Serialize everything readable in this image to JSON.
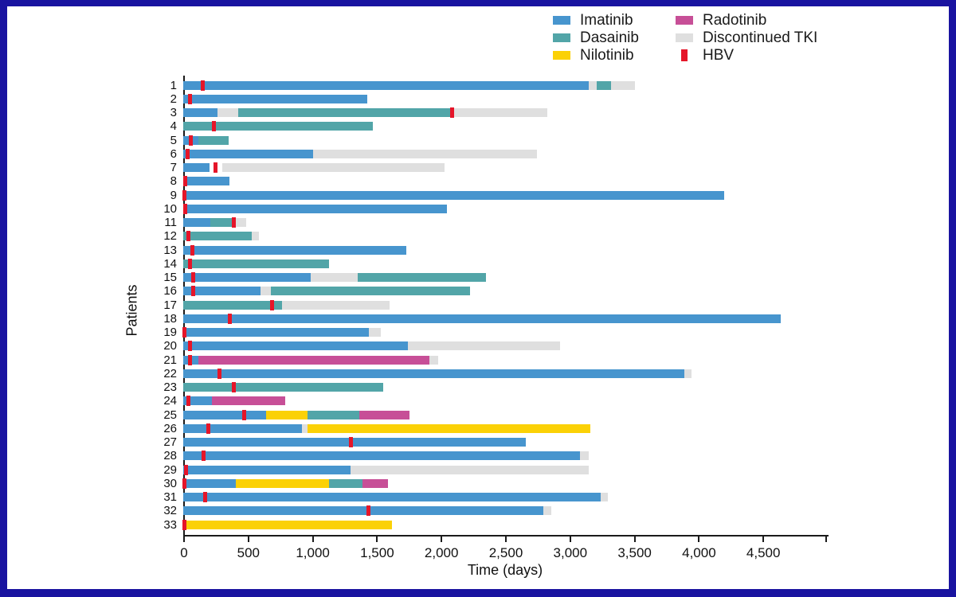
{
  "frame": {
    "border_color": "#1913A0",
    "canvas_color": "#ffffff"
  },
  "legend": {
    "items": [
      {
        "label": "Imatinib",
        "color": "#4795CE",
        "swatch": "bar"
      },
      {
        "label": "Dasainib",
        "color": "#52A5A8",
        "swatch": "bar"
      },
      {
        "label": "Nilotinib",
        "color": "#FBD106",
        "swatch": "bar"
      },
      {
        "label": "Radotinib",
        "color": "#C74F97",
        "swatch": "bar"
      },
      {
        "label": "Discontinued TKI",
        "color": "#DFDFDF",
        "swatch": "bar"
      },
      {
        "label": "HBV",
        "color": "#E51529",
        "swatch": "tick"
      }
    ]
  },
  "chart_data": {
    "type": "bar",
    "orientation": "horizontal",
    "title": "",
    "xlabel": "Time (days)",
    "ylabel": "Patients",
    "xlim": [
      0,
      5000
    ],
    "xticks": [
      0,
      500,
      1000,
      1500,
      2000,
      2500,
      3000,
      3500,
      4000,
      4500
    ],
    "xtick_labels": [
      "0",
      "500",
      "1,000",
      "1,500",
      "2,000",
      "2,500",
      "3,000",
      "3,500",
      "4,000",
      "4,500"
    ],
    "end_tick": 5000,
    "grid": false,
    "legend_position": "top",
    "colors": {
      "Imatinib": "#4795CE",
      "Dasainib": "#52A5A8",
      "Nilotinib": "#FBD106",
      "Radotinib": "#C74F97",
      "Discontinued": "#DFDFDF",
      "HBV": "#E51529"
    },
    "patients": [
      {
        "id": "1",
        "hbv": 150,
        "segments": [
          {
            "drug": "Imatinib",
            "start": 0,
            "end": 3150
          },
          {
            "drug": "Discontinued",
            "start": 3150,
            "end": 3210
          },
          {
            "drug": "Dasainib",
            "start": 3210,
            "end": 3320
          },
          {
            "drug": "Discontinued",
            "start": 3320,
            "end": 3510
          }
        ]
      },
      {
        "id": "2",
        "hbv": 55,
        "segments": [
          {
            "drug": "Imatinib",
            "start": 0,
            "end": 1430
          }
        ]
      },
      {
        "id": "3",
        "hbv": 2090,
        "segments": [
          {
            "drug": "Imatinib",
            "start": 0,
            "end": 265
          },
          {
            "drug": "Discontinued",
            "start": 265,
            "end": 430
          },
          {
            "drug": "Dasainib",
            "start": 430,
            "end": 2090
          },
          {
            "drug": "Discontinued",
            "start": 2090,
            "end": 2830
          }
        ]
      },
      {
        "id": "4",
        "hbv": 240,
        "segments": [
          {
            "drug": "Dasainib",
            "start": 0,
            "end": 1475
          }
        ]
      },
      {
        "id": "5",
        "hbv": 60,
        "segments": [
          {
            "drug": "Imatinib",
            "start": 0,
            "end": 115
          },
          {
            "drug": "Dasainib",
            "start": 115,
            "end": 355
          }
        ]
      },
      {
        "id": "6",
        "hbv": 35,
        "segments": [
          {
            "drug": "Imatinib",
            "start": 0,
            "end": 1010
          },
          {
            "drug": "Discontinued",
            "start": 1010,
            "end": 2750
          }
        ]
      },
      {
        "id": "7",
        "hbv": 250,
        "segments": [
          {
            "drug": "Imatinib",
            "start": 0,
            "end": 205
          },
          {
            "drug": "Discontinued",
            "start": 305,
            "end": 2030
          }
        ]
      },
      {
        "id": "8",
        "hbv": 15,
        "segments": [
          {
            "drug": "Imatinib",
            "start": 0,
            "end": 360
          }
        ]
      },
      {
        "id": "9",
        "hbv": 10,
        "segments": [
          {
            "drug": "Imatinib",
            "start": 0,
            "end": 4200
          }
        ]
      },
      {
        "id": "10",
        "hbv": 15,
        "segments": [
          {
            "drug": "Imatinib",
            "start": 0,
            "end": 2050
          }
        ]
      },
      {
        "id": "11",
        "hbv": 390,
        "segments": [
          {
            "drug": "Imatinib",
            "start": 0,
            "end": 210
          },
          {
            "drug": "Dasainib",
            "start": 210,
            "end": 380
          },
          {
            "drug": "Discontinued",
            "start": 400,
            "end": 490
          }
        ]
      },
      {
        "id": "12",
        "hbv": 40,
        "segments": [
          {
            "drug": "Dasainib",
            "start": 0,
            "end": 530
          },
          {
            "drug": "Discontinued",
            "start": 530,
            "end": 585
          }
        ]
      },
      {
        "id": "13",
        "hbv": 70,
        "segments": [
          {
            "drug": "Imatinib",
            "start": 0,
            "end": 1730
          }
        ]
      },
      {
        "id": "14",
        "hbv": 50,
        "segments": [
          {
            "drug": "Dasainib",
            "start": 0,
            "end": 1130
          }
        ]
      },
      {
        "id": "15",
        "hbv": 75,
        "segments": [
          {
            "drug": "Imatinib",
            "start": 0,
            "end": 990
          },
          {
            "drug": "Discontinued",
            "start": 990,
            "end": 1355
          },
          {
            "drug": "Dasainib",
            "start": 1355,
            "end": 2350
          }
        ]
      },
      {
        "id": "16",
        "hbv": 75,
        "segments": [
          {
            "drug": "Imatinib",
            "start": 0,
            "end": 600
          },
          {
            "drug": "Discontinued",
            "start": 600,
            "end": 680
          },
          {
            "drug": "Dasainib",
            "start": 680,
            "end": 2230
          }
        ]
      },
      {
        "id": "17",
        "hbv": 690,
        "segments": [
          {
            "drug": "Dasainib",
            "start": 0,
            "end": 770
          },
          {
            "drug": "Discontinued",
            "start": 770,
            "end": 1600
          }
        ]
      },
      {
        "id": "18",
        "hbv": 365,
        "segments": [
          {
            "drug": "Imatinib",
            "start": 0,
            "end": 4640
          }
        ]
      },
      {
        "id": "19",
        "hbv": 10,
        "segments": [
          {
            "drug": "Imatinib",
            "start": 0,
            "end": 1440
          },
          {
            "drug": "Discontinued",
            "start": 1440,
            "end": 1535
          }
        ]
      },
      {
        "id": "20",
        "hbv": 55,
        "segments": [
          {
            "drug": "Imatinib",
            "start": 0,
            "end": 1745
          },
          {
            "drug": "Discontinued",
            "start": 1745,
            "end": 2930
          }
        ]
      },
      {
        "id": "21",
        "hbv": 50,
        "segments": [
          {
            "drug": "Imatinib",
            "start": 0,
            "end": 120
          },
          {
            "drug": "Radotinib",
            "start": 120,
            "end": 1910
          },
          {
            "drug": "Discontinued",
            "start": 1910,
            "end": 1980
          }
        ]
      },
      {
        "id": "22",
        "hbv": 280,
        "segments": [
          {
            "drug": "Imatinib",
            "start": 0,
            "end": 3890
          },
          {
            "drug": "Discontinued",
            "start": 3890,
            "end": 3950
          }
        ]
      },
      {
        "id": "23",
        "hbv": 390,
        "segments": [
          {
            "drug": "Dasainib",
            "start": 0,
            "end": 1555
          }
        ]
      },
      {
        "id": "24",
        "hbv": 40,
        "segments": [
          {
            "drug": "Imatinib",
            "start": 0,
            "end": 220
          },
          {
            "drug": "Radotinib",
            "start": 220,
            "end": 790
          }
        ]
      },
      {
        "id": "25",
        "hbv": 475,
        "segments": [
          {
            "drug": "Imatinib",
            "start": 0,
            "end": 645
          },
          {
            "drug": "Nilotinib",
            "start": 645,
            "end": 965
          },
          {
            "drug": "Dasainib",
            "start": 965,
            "end": 1370
          },
          {
            "drug": "Radotinib",
            "start": 1370,
            "end": 1760
          }
        ]
      },
      {
        "id": "26",
        "hbv": 195,
        "segments": [
          {
            "drug": "Imatinib",
            "start": 0,
            "end": 925
          },
          {
            "drug": "Discontinued",
            "start": 925,
            "end": 965
          },
          {
            "drug": "Nilotinib",
            "start": 965,
            "end": 3160
          }
        ]
      },
      {
        "id": "27",
        "hbv": 1300,
        "segments": [
          {
            "drug": "Imatinib",
            "start": 0,
            "end": 2660
          }
        ]
      },
      {
        "id": "28",
        "hbv": 155,
        "segments": [
          {
            "drug": "Imatinib",
            "start": 0,
            "end": 3080
          },
          {
            "drug": "Discontinued",
            "start": 3080,
            "end": 3150
          }
        ]
      },
      {
        "id": "29",
        "hbv": 20,
        "segments": [
          {
            "drug": "Imatinib",
            "start": 0,
            "end": 1300
          },
          {
            "drug": "Discontinued",
            "start": 1300,
            "end": 3150
          }
        ]
      },
      {
        "id": "30",
        "hbv": 10,
        "segments": [
          {
            "drug": "Imatinib",
            "start": 0,
            "end": 410
          },
          {
            "drug": "Nilotinib",
            "start": 410,
            "end": 1130
          },
          {
            "drug": "Dasainib",
            "start": 1130,
            "end": 1390
          },
          {
            "drug": "Radotinib",
            "start": 1390,
            "end": 1590
          }
        ]
      },
      {
        "id": "31",
        "hbv": 170,
        "segments": [
          {
            "drug": "Imatinib",
            "start": 0,
            "end": 3240
          },
          {
            "drug": "Discontinued",
            "start": 3240,
            "end": 3300
          }
        ]
      },
      {
        "id": "32",
        "hbv": 1440,
        "segments": [
          {
            "drug": "Imatinib",
            "start": 0,
            "end": 2800
          },
          {
            "drug": "Discontinued",
            "start": 2800,
            "end": 2860
          }
        ]
      },
      {
        "id": "33",
        "hbv": 10,
        "segments": [
          {
            "drug": "Nilotinib",
            "start": 20,
            "end": 1620
          }
        ]
      }
    ]
  }
}
